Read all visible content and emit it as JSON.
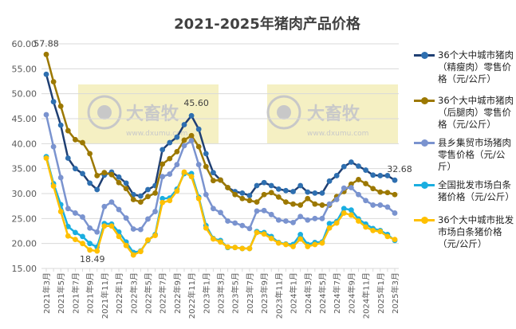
{
  "watermark": {
    "logo_text": "大畜牧",
    "url": "www.dxumu.com"
  },
  "chart_data": {
    "type": "line",
    "title": "2021-2025年猪肉产品价格",
    "xlabel": "",
    "ylabel": "",
    "ylim": [
      15,
      60
    ],
    "yticks": [
      "15.00",
      "20.00",
      "25.00",
      "30.00",
      "35.00",
      "40.00",
      "45.00",
      "50.00",
      "55.00",
      "60.00"
    ],
    "grid": true,
    "legend": "right",
    "x": [
      "2021年3月",
      "2021年4月",
      "2021年5月",
      "2021年6月",
      "2021年7月",
      "2021年8月",
      "2021年9月",
      "2021年10月",
      "2021年11月",
      "2021年12月",
      "2022年1月",
      "2022年2月",
      "2022年3月",
      "2022年4月",
      "2022年5月",
      "2022年6月",
      "2022年7月",
      "2022年8月",
      "2022年9月",
      "2022年10月",
      "2022年11月",
      "2022年12月",
      "2023年1月",
      "2023年2月",
      "2023年3月",
      "2023年4月",
      "2023年5月",
      "2023年6月",
      "2023年7月",
      "2023年8月",
      "2023年9月",
      "2023年10月",
      "2023年11月",
      "2023年12月",
      "2024年1月",
      "2024年2月",
      "2024年3月",
      "2024年4月",
      "2024年5月",
      "2024年6月",
      "2024年7月",
      "2024年8月",
      "2024年9月",
      "2024年10月",
      "2024年11月",
      "2024年12月",
      "2025年1月",
      "2025年2月",
      "2025年3月"
    ],
    "series": [
      {
        "name": "36个大中城市猪肉（精瘦肉）零售价格（元/公斤）",
        "color": "#1f3f73",
        "marker": "#2e6fb0",
        "values": [
          53.9,
          48.4,
          43.7,
          37.1,
          35.0,
          34.0,
          32.1,
          30.8,
          33.7,
          34.3,
          33.3,
          32.1,
          29.8,
          29.5,
          30.8,
          31.6,
          38.8,
          40.2,
          41.3,
          43.8,
          45.6,
          42.9,
          38.0,
          34.2,
          32.7,
          31.2,
          30.4,
          30.1,
          29.6,
          31.6,
          32.2,
          31.6,
          30.9,
          30.6,
          30.4,
          31.6,
          30.3,
          30.1,
          30.1,
          32.5,
          33.6,
          35.4,
          36.3,
          35.5,
          34.7,
          33.7,
          33.6,
          33.6,
          32.68
        ]
      },
      {
        "name": "36个大中城市猪肉（后腿肉）零售价格（元/公斤）",
        "color": "#9c7800",
        "marker": "#9c7800",
        "values": [
          57.88,
          52.4,
          47.5,
          42.6,
          40.8,
          40.2,
          38.0,
          33.6,
          34.2,
          33.8,
          32.2,
          31.0,
          28.8,
          28.3,
          29.4,
          30.1,
          35.9,
          37.0,
          38.4,
          40.7,
          41.6,
          39.4,
          35.4,
          32.6,
          32.7,
          31.2,
          29.8,
          29.0,
          28.6,
          28.3,
          29.8,
          30.2,
          29.3,
          28.3,
          27.9,
          27.7,
          29.0,
          27.9,
          27.7,
          27.7,
          29.4,
          30.4,
          31.9,
          32.8,
          32.0,
          31.0,
          30.3,
          30.2,
          29.8
        ]
      },
      {
        "name": "县乡集贸市场猪肉零售价格（元/公斤）",
        "color": "#7a93cf",
        "marker": "#7a93cf",
        "values": [
          45.8,
          39.4,
          33.2,
          27.0,
          26.1,
          25.3,
          23.1,
          22.3,
          27.4,
          28.3,
          26.8,
          25.1,
          22.9,
          22.8,
          24.9,
          26.4,
          33.4,
          33.9,
          35.8,
          39.6,
          40.6,
          35.8,
          29.8,
          27.0,
          26.2,
          24.5,
          24.1,
          23.6,
          23.0,
          26.5,
          26.6,
          25.8,
          24.7,
          24.5,
          24.2,
          25.4,
          24.7,
          25.0,
          25.0,
          27.9,
          28.8,
          31.1,
          31.2,
          29.8,
          28.6,
          27.7,
          27.7,
          27.3,
          26.1
        ]
      },
      {
        "name": "全国批发市场白条猪价格（元/公斤）",
        "color": "#1aaee0",
        "marker": "#1aaee0",
        "values": [
          37.4,
          32.0,
          27.8,
          23.4,
          22.2,
          21.4,
          20.0,
          19.3,
          24.0,
          23.9,
          22.3,
          20.3,
          18.2,
          18.5,
          20.6,
          21.8,
          29.0,
          29.1,
          30.9,
          34.0,
          34.0,
          29.3,
          23.6,
          21.0,
          20.6,
          19.2,
          19.2,
          19.0,
          19.0,
          22.4,
          22.2,
          21.4,
          20.2,
          19.9,
          19.8,
          21.8,
          19.8,
          20.2,
          20.3,
          24.0,
          24.4,
          27.0,
          26.7,
          24.9,
          23.9,
          23.0,
          22.6,
          21.8,
          20.6
        ]
      },
      {
        "name": "36个大中城市批发市场白条猪价格（元/公斤）",
        "color": "#ffc000",
        "marker": "#ffc000",
        "values": [
          37.1,
          31.5,
          26.4,
          21.5,
          20.8,
          20.0,
          18.7,
          18.49,
          23.5,
          23.5,
          21.4,
          19.6,
          17.7,
          18.4,
          20.7,
          21.6,
          28.2,
          28.6,
          30.5,
          34.3,
          33.4,
          29.0,
          23.1,
          20.9,
          20.3,
          19.3,
          19.2,
          19.0,
          19.0,
          22.2,
          21.9,
          21.0,
          20.1,
          19.8,
          19.4,
          20.9,
          19.4,
          19.8,
          20.1,
          23.1,
          24.1,
          26.1,
          25.7,
          24.5,
          23.3,
          22.6,
          22.4,
          21.4,
          20.8
        ]
      }
    ],
    "annotations": [
      {
        "text": "57.88",
        "series": 1,
        "index": 0
      },
      {
        "text": "18.49",
        "series": 4,
        "index": 7
      },
      {
        "text": "45.60",
        "series": 0,
        "index": 20
      },
      {
        "text": "32.68",
        "series": 0,
        "index": 48
      }
    ]
  }
}
